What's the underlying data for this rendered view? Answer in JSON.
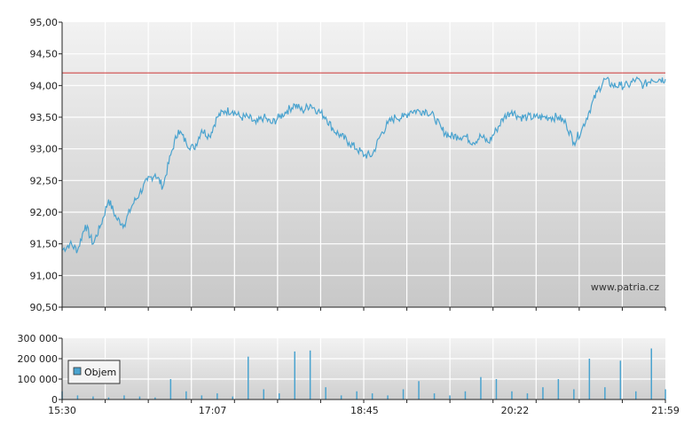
{
  "watermark": "www.patria.cz",
  "chart_data": [
    {
      "type": "line",
      "title": "",
      "xlabel": "",
      "ylabel": "",
      "ylim": [
        90.5,
        95.0
      ],
      "yticks": [
        "95,00",
        "94,50",
        "94,00",
        "93,50",
        "93,00",
        "92,50",
        "92,00",
        "91,50",
        "91,00",
        "90,50"
      ],
      "reference_line": 94.2,
      "colors": {
        "line": "#4aa3cf",
        "reference": "#cc3333"
      },
      "series": [
        {
          "x": [
            "15:30",
            "15:35",
            "15:40",
            "15:45",
            "15:50",
            "15:55",
            "16:00",
            "16:05",
            "16:10",
            "16:15",
            "16:20",
            "16:25",
            "16:30",
            "16:35",
            "16:40",
            "16:45",
            "16:50",
            "16:55",
            "17:00",
            "17:05",
            "17:10",
            "17:15",
            "17:20",
            "17:25",
            "17:30",
            "17:35",
            "17:40",
            "17:45",
            "17:50",
            "17:55",
            "18:00",
            "18:05",
            "18:10",
            "18:15",
            "18:20",
            "18:25",
            "18:30",
            "18:35",
            "18:40",
            "18:45",
            "18:50",
            "18:55",
            "19:00",
            "19:05",
            "19:10",
            "19:15",
            "19:20",
            "19:25",
            "19:30",
            "19:35",
            "19:40",
            "19:45",
            "19:50",
            "19:55",
            "20:00",
            "20:05",
            "20:10",
            "20:15",
            "20:20",
            "20:25",
            "20:30",
            "20:35",
            "20:40",
            "20:45",
            "20:50",
            "20:55",
            "21:00",
            "21:05",
            "21:10",
            "21:15",
            "21:20",
            "21:25",
            "21:30",
            "21:35",
            "21:40",
            "21:45",
            "21:50",
            "21:55",
            "21:59"
          ],
          "values": [
            91.4,
            91.5,
            91.4,
            91.8,
            91.5,
            91.8,
            92.2,
            91.9,
            91.8,
            92.1,
            92.3,
            92.5,
            92.6,
            92.4,
            92.9,
            93.3,
            93.1,
            93.0,
            93.3,
            93.2,
            93.5,
            93.6,
            93.6,
            93.5,
            93.5,
            93.4,
            93.5,
            93.4,
            93.5,
            93.6,
            93.7,
            93.6,
            93.7,
            93.6,
            93.5,
            93.3,
            93.2,
            93.1,
            93.0,
            92.9,
            92.9,
            93.2,
            93.4,
            93.5,
            93.5,
            93.6,
            93.6,
            93.6,
            93.5,
            93.3,
            93.2,
            93.2,
            93.2,
            93.1,
            93.2,
            93.1,
            93.3,
            93.5,
            93.6,
            93.5,
            93.5,
            93.5,
            93.5,
            93.5,
            93.5,
            93.4,
            93.1,
            93.3,
            93.6,
            93.9,
            94.1,
            94.0,
            94.0,
            94.0,
            94.1,
            94.0,
            94.1,
            94.1,
            94.1
          ]
        }
      ]
    },
    {
      "type": "bar",
      "title": "",
      "xlabel": "",
      "ylabel": "",
      "ylim": [
        0,
        300000
      ],
      "yticks": [
        "300 000",
        "200 000",
        "100 000",
        "0"
      ],
      "xticks": [
        "15:30",
        "17:07",
        "18:45",
        "20:22",
        "21:59"
      ],
      "legend": {
        "label": "Objem",
        "position": "left"
      },
      "colors": {
        "bar": "#4aa3cf"
      },
      "series": [
        {
          "name": "Objem",
          "x": [
            "15:30",
            "15:40",
            "15:50",
            "16:00",
            "16:10",
            "16:20",
            "16:30",
            "16:40",
            "16:50",
            "17:00",
            "17:10",
            "17:20",
            "17:30",
            "17:40",
            "17:50",
            "18:00",
            "18:10",
            "18:20",
            "18:30",
            "18:40",
            "18:50",
            "19:00",
            "19:10",
            "19:20",
            "19:30",
            "19:40",
            "19:50",
            "20:00",
            "20:10",
            "20:20",
            "20:30",
            "20:40",
            "20:50",
            "21:00",
            "21:10",
            "21:20",
            "21:30",
            "21:40",
            "21:50",
            "21:59"
          ],
          "values": [
            40000,
            20000,
            15000,
            10000,
            20000,
            15000,
            10000,
            100000,
            40000,
            20000,
            30000,
            15000,
            210000,
            50000,
            30000,
            235000,
            240000,
            60000,
            20000,
            40000,
            30000,
            20000,
            50000,
            90000,
            30000,
            20000,
            40000,
            110000,
            100000,
            40000,
            30000,
            60000,
            100000,
            50000,
            200000,
            60000,
            190000,
            40000,
            250000,
            50000
          ]
        }
      ]
    }
  ]
}
